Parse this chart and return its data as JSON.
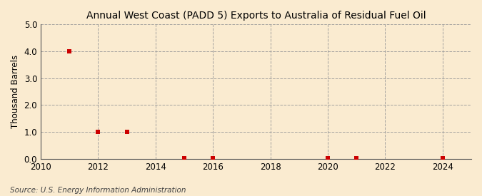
{
  "title": "Annual West Coast (PADD 5) Exports to Australia of Residual Fuel Oil",
  "ylabel": "Thousand Barrels",
  "source": "Source: U.S. Energy Information Administration",
  "xlim": [
    2010,
    2025
  ],
  "ylim": [
    0.0,
    5.0
  ],
  "yticks": [
    0.0,
    1.0,
    2.0,
    3.0,
    4.0,
    5.0
  ],
  "xticks": [
    2010,
    2012,
    2014,
    2016,
    2018,
    2020,
    2022,
    2024
  ],
  "data_x": [
    2011,
    2012,
    2013,
    2015,
    2016,
    2020,
    2021,
    2024
  ],
  "data_y": [
    4.0,
    1.0,
    1.0,
    0.02,
    0.02,
    0.02,
    0.02,
    0.02
  ],
  "marker_color": "#cc0000",
  "marker_size": 4,
  "background_color": "#faebd0",
  "plot_bg_color": "#faebd0",
  "grid_color": "#999999",
  "title_fontsize": 10,
  "label_fontsize": 8.5,
  "tick_fontsize": 8.5,
  "source_fontsize": 7.5
}
